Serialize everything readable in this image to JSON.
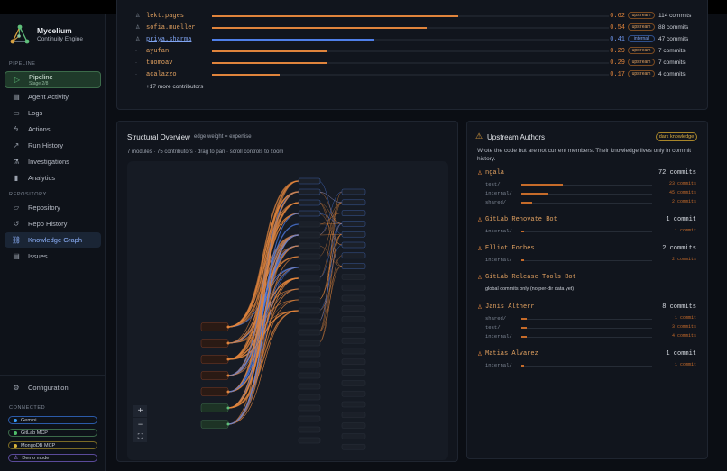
{
  "app": {
    "name": "Mycelium",
    "subtitle": "Continuity Engine"
  },
  "sidebar": {
    "pipeline_label": "PIPELINE",
    "pipeline_item": {
      "label": "Pipeline",
      "sub": "Stage 2/8"
    },
    "items": [
      {
        "label": "Agent Activity",
        "icon": "activity-icon"
      },
      {
        "label": "Logs",
        "icon": "logs-icon"
      },
      {
        "label": "Actions",
        "icon": "bolt-icon"
      },
      {
        "label": "Run History",
        "icon": "chart-line-icon"
      },
      {
        "label": "Investigations",
        "icon": "flask-icon"
      },
      {
        "label": "Analytics",
        "icon": "bar-chart-icon"
      }
    ],
    "repository_label": "REPOSITORY",
    "repo_items": [
      {
        "label": "Repository",
        "icon": "folder-icon"
      },
      {
        "label": "Repo History",
        "icon": "history-icon"
      },
      {
        "label": "Knowledge Graph",
        "icon": "graph-icon",
        "active": true
      },
      {
        "label": "Issues",
        "icon": "issues-icon"
      }
    ],
    "configuration": "Configuration",
    "connected_label": "CONNECTED",
    "connected": [
      {
        "label": "Gemini",
        "color": "#3aa0ff",
        "border": "#2b5aa8"
      },
      {
        "label": "GitLab MCP",
        "color": "#4fbf6a",
        "border": "#3c6b4a"
      },
      {
        "label": "MongoDB MCP",
        "color": "#d6b23a",
        "border": "#7a6a25"
      },
      {
        "label": "Demo mode",
        "color": "#9b7be0",
        "border": "#5a4a9a"
      }
    ]
  },
  "contributors": {
    "rows": [
      {
        "name": "lekt.pages",
        "value": "0.62",
        "fill": 0.62,
        "tag": "upstream",
        "commits": "114 commits",
        "style": "orange"
      },
      {
        "name": "sofia.mueller",
        "value": "0.54",
        "fill": 0.54,
        "tag": "upstream",
        "commits": "88 commits",
        "style": "orange"
      },
      {
        "name": "priya.sharma",
        "value": "0.41",
        "fill": 0.41,
        "tag": "internal",
        "commits": "47 commits",
        "style": "blue"
      },
      {
        "name": "ayufan",
        "value": "0.29",
        "fill": 0.29,
        "tag": "upstream",
        "commits": "7 commits",
        "style": "orange"
      },
      {
        "name": "tuomoav",
        "value": "0.29",
        "fill": 0.29,
        "tag": "upstream",
        "commits": "7 commits",
        "style": "orange"
      },
      {
        "name": "acalazzo",
        "value": "0.17",
        "fill": 0.17,
        "tag": "upstream",
        "commits": "4 commits",
        "style": "orange"
      }
    ],
    "more": "+17 more contributors"
  },
  "structural": {
    "title": "Structural Overview",
    "edge_note": "edge weight = expertise",
    "summary": "7 modules · 75 contributors · drag to pan · scroll controls to zoom",
    "zoom_in": "+",
    "zoom_out": "−",
    "fit": "⛶"
  },
  "upstream": {
    "title": "Upstream Authors",
    "badge": "dark knowledge",
    "description": "Wrote the code but are not current members. Their knowledge lives only in commit history.",
    "authors": [
      {
        "name": "ngala",
        "commits": "72 commits",
        "subs": [
          {
            "label": "test/",
            "value": "23 commits",
            "fill": 0.32
          },
          {
            "label": "internal/",
            "value": "45 commits",
            "fill": 0.2
          },
          {
            "label": "shared/",
            "value": "2 commits",
            "fill": 0.08
          }
        ]
      },
      {
        "name": "GitLab Renovate Bot",
        "commits": "1 commit",
        "subs": [
          {
            "label": "internal/",
            "value": "1 commit",
            "fill": 0.02
          }
        ]
      },
      {
        "name": "Elliot Forbes",
        "commits": "2 commits",
        "subs": [
          {
            "label": "internal/",
            "value": "2 commits",
            "fill": 0.02
          }
        ]
      },
      {
        "name": "GitLab Release Tools Bot",
        "commits": "",
        "note": "global commits only (no per-dir data yet)",
        "subs": []
      },
      {
        "name": "Janis Altherr",
        "commits": "8 commits",
        "subs": [
          {
            "label": "shared/",
            "value": "1 commit",
            "fill": 0.04
          },
          {
            "label": "test/",
            "value": "3 commits",
            "fill": 0.04
          },
          {
            "label": "internal/",
            "value": "4 commits",
            "fill": 0.04
          }
        ]
      },
      {
        "name": "Matias Alvarez",
        "commits": "1 commit",
        "subs": [
          {
            "label": "internal/",
            "value": "1 commit",
            "fill": 0.02
          }
        ]
      }
    ]
  }
}
